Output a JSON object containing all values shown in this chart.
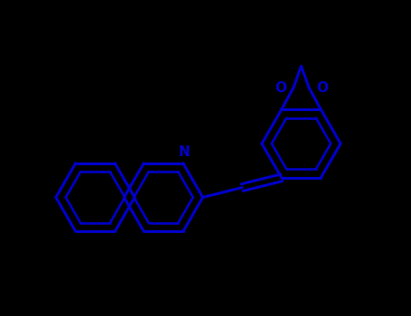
{
  "bg_color": "#000000",
  "bond_color": "#0000cc",
  "atom_label_color": "#0000cc",
  "line_width": 2.2,
  "font_size": 11,
  "fig_width": 4.55,
  "fig_height": 3.5,
  "dpi": 100,
  "xlim": [
    -0.5,
    9.5
  ],
  "ylim": [
    -0.5,
    7.5
  ]
}
